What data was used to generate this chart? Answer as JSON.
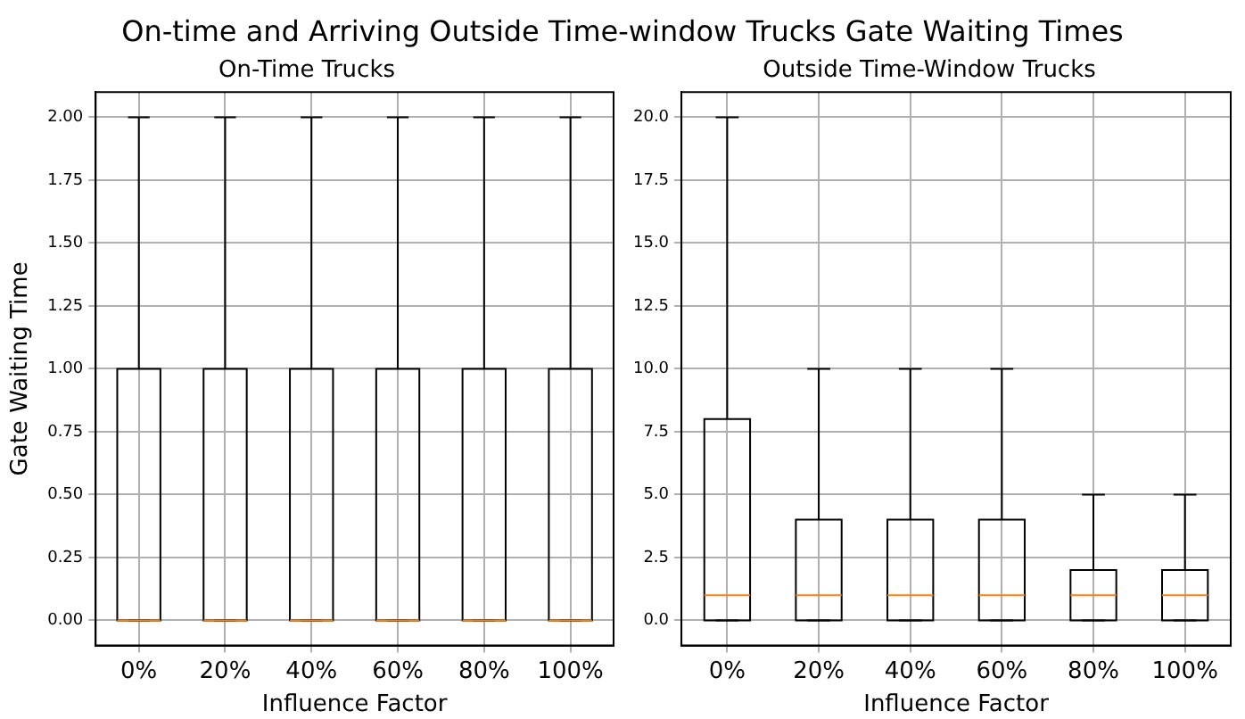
{
  "chart_data": [
    {
      "type": "box",
      "title": "On-time and Arriving Outside Time-window Trucks Gate Waiting Times",
      "subtitle": "On-Time Trucks",
      "xlabel": "Influence Factor",
      "ylabel": "Gate Waiting Time",
      "categories": [
        "0%",
        "20%",
        "40%",
        "60%",
        "80%",
        "100%"
      ],
      "grid": true,
      "ylim": [
        -0.1,
        2.1
      ],
      "yticks": [
        {
          "value": 0,
          "label": "0.00"
        },
        {
          "value": 0.25,
          "label": "0.25"
        },
        {
          "value": 0.5,
          "label": "0.50"
        },
        {
          "value": 0.75,
          "label": "0.75"
        },
        {
          "value": 1,
          "label": "1.00"
        },
        {
          "value": 1.25,
          "label": "1.25"
        },
        {
          "value": 1.5,
          "label": "1.50"
        },
        {
          "value": 1.75,
          "label": "1.75"
        },
        {
          "value": 2,
          "label": "2.00"
        }
      ],
      "series": [
        {
          "color": "#000000",
          "boxes": [
            {
              "low": 0,
              "q1": 0,
              "median": 0,
              "q3": 1,
              "high": 2
            },
            {
              "low": 0,
              "q1": 0,
              "median": 0,
              "q3": 1,
              "high": 2
            },
            {
              "low": 0,
              "q1": 0,
              "median": 0,
              "q3": 1,
              "high": 2
            },
            {
              "low": 0,
              "q1": 0,
              "median": 0,
              "q3": 1,
              "high": 2
            },
            {
              "low": 0,
              "q1": 0,
              "median": 0,
              "q3": 1,
              "high": 2
            },
            {
              "low": 0,
              "q1": 0,
              "median": 0,
              "q3": 1,
              "high": 2
            }
          ]
        }
      ]
    },
    {
      "type": "box",
      "subtitle": "Outside Time-Window Trucks",
      "xlabel": "Influence Factor",
      "categories": [
        "0%",
        "20%",
        "40%",
        "60%",
        "80%",
        "100%"
      ],
      "grid": true,
      "ylim": [
        -1,
        21
      ],
      "yticks": [
        {
          "value": 0,
          "label": "0.0"
        },
        {
          "value": 2.5,
          "label": "2.5"
        },
        {
          "value": 5,
          "label": "5.0"
        },
        {
          "value": 7.5,
          "label": "7.5"
        },
        {
          "value": 10,
          "label": "10.0"
        },
        {
          "value": 12.5,
          "label": "12.5"
        },
        {
          "value": 15,
          "label": "15.0"
        },
        {
          "value": 17.5,
          "label": "17.5"
        },
        {
          "value": 20,
          "label": "20.0"
        }
      ],
      "series": [
        {
          "color": "#000000",
          "boxes": [
            {
              "low": 0,
              "q1": 0,
              "median": 1,
              "q3": 8,
              "high": 20
            },
            {
              "low": 0,
              "q1": 0,
              "median": 1,
              "q3": 4,
              "high": 10
            },
            {
              "low": 0,
              "q1": 0,
              "median": 1,
              "q3": 4,
              "high": 10
            },
            {
              "low": 0,
              "q1": 0,
              "median": 1,
              "q3": 4,
              "high": 10
            },
            {
              "low": 0,
              "q1": 0,
              "median": 1,
              "q3": 2,
              "high": 5
            },
            {
              "low": 0,
              "q1": 0,
              "median": 1,
              "q3": 2,
              "high": 5
            }
          ]
        }
      ]
    }
  ]
}
